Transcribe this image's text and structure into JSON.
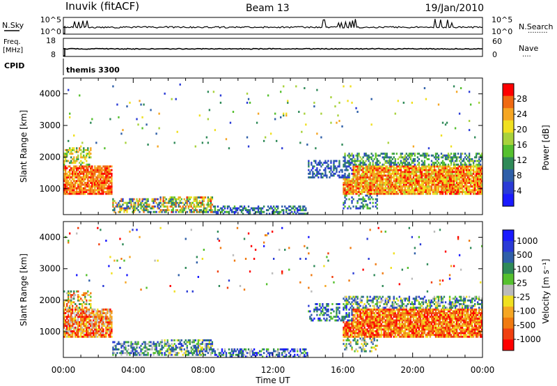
{
  "header": {
    "station": "Inuvik (fitACF)",
    "beam": "Beam 13",
    "date": "19/Jan/2010"
  },
  "top_panel": {
    "left_label": "N.Sky",
    "left_ticks": [
      "10^5",
      "10^0"
    ],
    "right_ticks": [
      "10^5",
      "10^0"
    ],
    "right_label": "N.Search",
    "right_dots": "·········"
  },
  "freq_panel": {
    "left_label_1": "Freq.",
    "left_label_2": "[MHz]",
    "left_ticks": [
      "18",
      "8"
    ],
    "right_ticks": [
      "60",
      "0"
    ],
    "right_label": "Nave",
    "right_dots": "····"
  },
  "cpid": {
    "label": "CPID",
    "value": "themis 3300"
  },
  "colors": {
    "power_bins": [
      "#1a1aff",
      "#2a3bd6",
      "#2f5fa8",
      "#2f8a58",
      "#55c02e",
      "#a8d23c",
      "#f0e020",
      "#f5a623",
      "#f06a12",
      "#ff0000"
    ],
    "velocity_bins": [
      "#ff0000",
      "#f04010",
      "#f07a10",
      "#f5a623",
      "#f0e020",
      "#bbbbbb",
      "#55c02e",
      "#2f8a58",
      "#2f5fa8",
      "#2a3bd6",
      "#1a1aff"
    ]
  },
  "chart_data": [
    {
      "type": "heatmap",
      "name": "power",
      "ylabel": "Slant Range [km]",
      "xlabel": "Time UT",
      "xlim": [
        "00:00",
        "24:00"
      ],
      "ylim": [
        180,
        4500
      ],
      "yticks": [
        "1000",
        "2000",
        "3000",
        "4000"
      ],
      "xticks": [
        "00:00",
        "04:00",
        "08:00",
        "12:00",
        "16:00",
        "20:00",
        "00:00"
      ],
      "colorbar": {
        "label": "Power [dB]",
        "range": [
          0,
          32
        ],
        "ticks": [
          "28",
          "24",
          "20",
          "16",
          "12",
          "8",
          "4"
        ]
      }
    },
    {
      "type": "heatmap",
      "name": "velocity",
      "ylabel": "Slant Range [km]",
      "xlabel": "Time UT",
      "xlim": [
        "00:00",
        "24:00"
      ],
      "ylim": [
        180,
        4500
      ],
      "yticks": [
        "1000",
        "2000",
        "3000",
        "4000"
      ],
      "xticks": [
        "00:00",
        "04:00",
        "08:00",
        "12:00",
        "16:00",
        "20:00",
        "00:00"
      ],
      "colorbar": {
        "label": "Velocity [m s⁻¹]",
        "ticks": [
          "1000",
          "500",
          "100",
          "25",
          "-25",
          "-100",
          "-500",
          "-1000"
        ]
      }
    }
  ]
}
